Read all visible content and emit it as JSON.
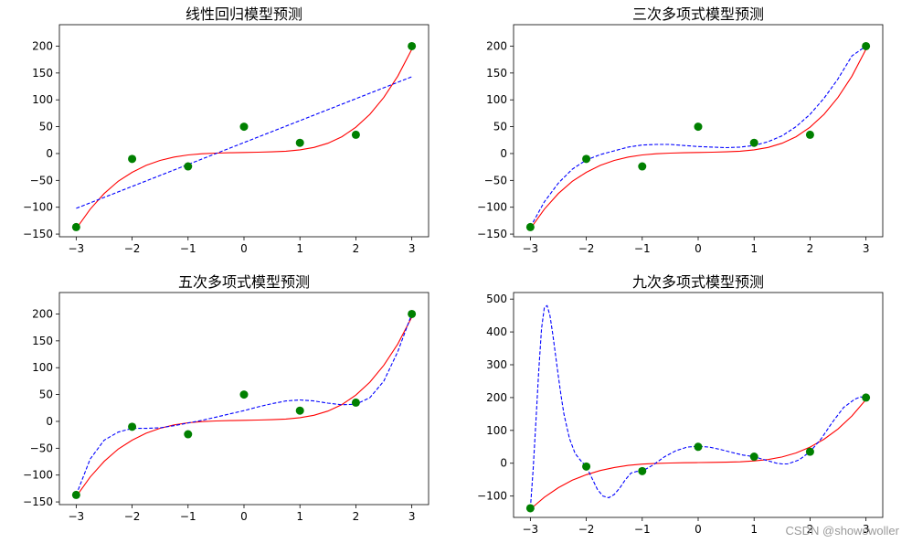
{
  "watermark": "CSDN @showswoller",
  "chart_data": [
    {
      "type": "line",
      "title": "线性回归模型预测",
      "xlabel": "",
      "ylabel": "",
      "xlim": [
        -3.3,
        3.3
      ],
      "ylim": [
        -155,
        240
      ],
      "xticks": [
        -3,
        -2,
        -1,
        0,
        1,
        2,
        3
      ],
      "yticks": [
        -150,
        -100,
        -50,
        0,
        50,
        100,
        150,
        200
      ],
      "points": {
        "x": [
          -3,
          -2,
          -1,
          0,
          1,
          2,
          3
        ],
        "y": [
          -137,
          -10,
          -24,
          50,
          20,
          35,
          200
        ],
        "color": "#008000"
      },
      "true_curve": {
        "color": "#ff0000",
        "style": "solid",
        "x": [
          -3,
          -2.75,
          -2.5,
          -2.25,
          -2,
          -1.75,
          -1.5,
          -1.25,
          -1,
          -0.75,
          -0.5,
          -0.25,
          0,
          0.25,
          0.5,
          0.75,
          1,
          1.25,
          1.5,
          1.75,
          2,
          2.25,
          2.5,
          2.75,
          3
        ],
        "y": [
          -140,
          -103.5,
          -74.4,
          -51.6,
          -35,
          -22.1,
          -12.9,
          -6.6,
          -2.7,
          -0.4,
          0.8,
          1.5,
          2,
          2.5,
          3.2,
          4.4,
          7,
          11.4,
          19.1,
          31.3,
          49,
          73,
          104.4,
          144.2,
          194
        ]
      },
      "fitted_curve": {
        "color": "#0000ff",
        "style": "dashed",
        "x": [
          -3,
          3
        ],
        "y": [
          -102,
          143
        ]
      }
    },
    {
      "type": "line",
      "title": "三次多项式模型预测",
      "xlabel": "",
      "ylabel": "",
      "xlim": [
        -3.3,
        3.3
      ],
      "ylim": [
        -155,
        240
      ],
      "xticks": [
        -3,
        -2,
        -1,
        0,
        1,
        2,
        3
      ],
      "yticks": [
        -150,
        -100,
        -50,
        0,
        50,
        100,
        150,
        200
      ],
      "points": {
        "x": [
          -3,
          -2,
          -1,
          0,
          1,
          2,
          3
        ],
        "y": [
          -137,
          -10,
          -24,
          50,
          20,
          35,
          200
        ],
        "color": "#008000"
      },
      "true_curve": {
        "color": "#ff0000",
        "style": "solid",
        "x": [
          -3,
          -2.75,
          -2.5,
          -2.25,
          -2,
          -1.75,
          -1.5,
          -1.25,
          -1,
          -0.75,
          -0.5,
          -0.25,
          0,
          0.25,
          0.5,
          0.75,
          1,
          1.25,
          1.5,
          1.75,
          2,
          2.25,
          2.5,
          2.75,
          3
        ],
        "y": [
          -140,
          -103.5,
          -74.4,
          -51.6,
          -35,
          -22.1,
          -12.9,
          -6.6,
          -2.7,
          -0.4,
          0.8,
          1.5,
          2,
          2.5,
          3.2,
          4.4,
          7,
          11.4,
          19.1,
          31.3,
          49,
          73,
          104.4,
          144.2,
          194
        ]
      },
      "fitted_curve": {
        "color": "#0000ff",
        "style": "dashed",
        "x": [
          -3,
          -2.75,
          -2.5,
          -2.25,
          -2,
          -1.75,
          -1.5,
          -1.25,
          -1,
          -0.75,
          -0.5,
          -0.25,
          0,
          0.25,
          0.5,
          0.75,
          1,
          1.25,
          1.5,
          1.75,
          2,
          2.25,
          2.5,
          2.75,
          3
        ],
        "y": [
          -137,
          -90,
          -55,
          -29,
          -12,
          -2,
          5,
          12,
          16,
          17,
          17,
          15,
          13,
          12,
          11,
          12,
          15,
          22,
          33,
          50,
          73,
          103,
          139,
          182,
          200
        ]
      }
    },
    {
      "type": "line",
      "title": "五次多项式模型预测",
      "xlabel": "",
      "ylabel": "",
      "xlim": [
        -3.3,
        3.3
      ],
      "ylim": [
        -155,
        240
      ],
      "xticks": [
        -3,
        -2,
        -1,
        0,
        1,
        2,
        3
      ],
      "yticks": [
        -150,
        -100,
        -50,
        0,
        50,
        100,
        150,
        200
      ],
      "points": {
        "x": [
          -3,
          -2,
          -1,
          0,
          1,
          2,
          3
        ],
        "y": [
          -137,
          -10,
          -24,
          50,
          20,
          35,
          200
        ],
        "color": "#008000"
      },
      "true_curve": {
        "color": "#ff0000",
        "style": "solid",
        "x": [
          -3,
          -2.75,
          -2.5,
          -2.25,
          -2,
          -1.75,
          -1.5,
          -1.25,
          -1,
          -0.75,
          -0.5,
          -0.25,
          0,
          0.25,
          0.5,
          0.75,
          1,
          1.25,
          1.5,
          1.75,
          2,
          2.25,
          2.5,
          2.75,
          3
        ],
        "y": [
          -140,
          -103.5,
          -74.4,
          -51.6,
          -35,
          -22.1,
          -12.9,
          -6.6,
          -2.7,
          -0.4,
          0.8,
          1.5,
          2,
          2.5,
          3.2,
          4.4,
          7,
          11.4,
          19.1,
          31.3,
          49,
          73,
          104.4,
          144.2,
          194
        ]
      },
      "fitted_curve": {
        "color": "#0000ff",
        "style": "dashed",
        "x": [
          -3,
          -2.75,
          -2.5,
          -2.25,
          -2,
          -1.75,
          -1.5,
          -1.25,
          -1,
          -0.75,
          -0.5,
          -0.25,
          0,
          0.25,
          0.5,
          0.75,
          1,
          1.25,
          1.5,
          1.75,
          2,
          2.25,
          2.5,
          2.75,
          3
        ],
        "y": [
          -137,
          -70,
          -35,
          -20,
          -13,
          -13,
          -12,
          -8,
          -3,
          2,
          8,
          14,
          20,
          27,
          33,
          38,
          40,
          38,
          34,
          31,
          32,
          44,
          75,
          130,
          200
        ]
      }
    },
    {
      "type": "line",
      "title": "九次多项式模型预测",
      "xlabel": "",
      "ylabel": "",
      "xlim": [
        -3.3,
        3.3
      ],
      "ylim": [
        -165,
        520
      ],
      "xticks": [
        -3,
        -2,
        -1,
        0,
        1,
        2,
        3
      ],
      "yticks": [
        -100,
        0,
        100,
        200,
        300,
        400,
        500
      ],
      "points": {
        "x": [
          -3,
          -2,
          -1,
          0,
          1,
          2,
          3
        ],
        "y": [
          -137,
          -10,
          -24,
          50,
          20,
          35,
          200
        ],
        "color": "#008000"
      },
      "true_curve": {
        "color": "#ff0000",
        "style": "solid",
        "x": [
          -3,
          -2.75,
          -2.5,
          -2.25,
          -2,
          -1.75,
          -1.5,
          -1.25,
          -1,
          -0.75,
          -0.5,
          -0.25,
          0,
          0.25,
          0.5,
          0.75,
          1,
          1.25,
          1.5,
          1.75,
          2,
          2.25,
          2.5,
          2.75,
          3
        ],
        "y": [
          -140,
          -103.5,
          -74.4,
          -51.6,
          -35,
          -22.1,
          -12.9,
          -6.6,
          -2.7,
          -0.4,
          0.8,
          1.5,
          2,
          2.5,
          3.2,
          4.4,
          7,
          11.4,
          19.1,
          31.3,
          49,
          73,
          104.4,
          144.2,
          194
        ]
      },
      "fitted_curve": {
        "color": "#0000ff",
        "style": "dashed",
        "x": [
          -3,
          -2.95,
          -2.9,
          -2.85,
          -2.8,
          -2.75,
          -2.7,
          -2.65,
          -2.6,
          -2.55,
          -2.5,
          -2.45,
          -2.4,
          -2.3,
          -2.2,
          -2.1,
          -2,
          -1.9,
          -1.8,
          -1.7,
          -1.6,
          -1.5,
          -1.4,
          -1.3,
          -1.2,
          -1.1,
          -1,
          -0.8,
          -0.6,
          -0.4,
          -0.2,
          0,
          0.2,
          0.4,
          0.6,
          0.8,
          1,
          1.2,
          1.4,
          1.5,
          1.6,
          1.8,
          2,
          2.2,
          2.4,
          2.6,
          2.8,
          2.9,
          3
        ],
        "y": [
          -137,
          -20,
          130,
          280,
          410,
          475,
          480,
          450,
          395,
          330,
          265,
          205,
          150,
          75,
          30,
          8,
          -10,
          -45,
          -80,
          -100,
          -105,
          -95,
          -75,
          -50,
          -30,
          -25,
          -24,
          -5,
          20,
          38,
          49,
          52,
          49,
          42,
          33,
          25,
          20,
          10,
          0,
          -2,
          -2,
          10,
          35,
          75,
          125,
          170,
          195,
          202,
          200
        ]
      }
    }
  ]
}
